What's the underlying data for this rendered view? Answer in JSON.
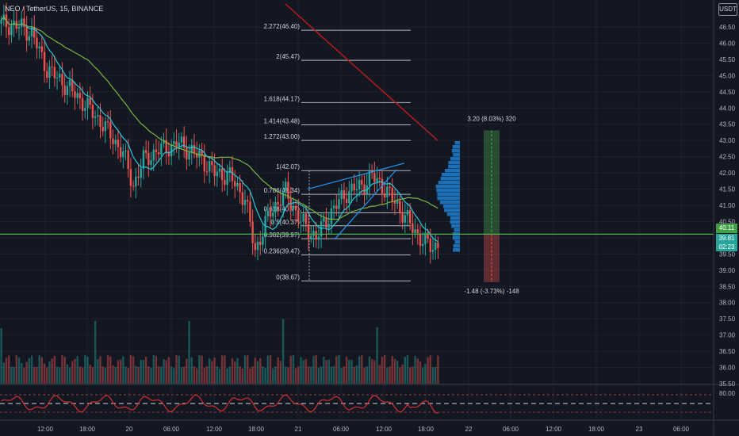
{
  "header": {
    "symbol_label": "NEO / TetherUS, 15, BINANCE",
    "currency_badge": "USDT"
  },
  "price_axis": {
    "ticks": [
      "46.50",
      "46.00",
      "45.50",
      "45.00",
      "44.50",
      "44.00",
      "43.50",
      "43.00",
      "42.50",
      "42.00",
      "41.50",
      "41.00",
      "40.50",
      "40.00",
      "39.50",
      "39.00",
      "38.50",
      "38.00",
      "37.50",
      "37.00",
      "36.50",
      "36.00",
      "35.50"
    ],
    "line_price_label": "40.11",
    "current_price_label": "39.81",
    "countdown_label": "02:23"
  },
  "time_axis": {
    "ticks": [
      "12:00",
      "18:00",
      "20",
      "06:00",
      "12:00",
      "18:00",
      "21",
      "06:00",
      "12:00",
      "18:00",
      "22",
      "06:00",
      "12:00",
      "18:00",
      "23",
      "06:00"
    ]
  },
  "fib_levels": [
    {
      "label": "2.272(46.40)"
    },
    {
      "label": "2(45.47)"
    },
    {
      "label": "1.618(44.17)"
    },
    {
      "label": "1.414(43.48)"
    },
    {
      "label": "1.272(43.00)"
    },
    {
      "label": "1(42.07)"
    },
    {
      "label": "0.786(41.34)"
    },
    {
      "label": "0.618(40.77)"
    },
    {
      "label": "0.5(40.37)"
    },
    {
      "label": "0.382(39.97)"
    },
    {
      "label": "0.236(39.47)"
    },
    {
      "label": "0(38.67)"
    }
  ],
  "position_tool": {
    "target_label": "3.20 (8.03%) 320",
    "stop_label": "-1.48 (-3.73%) -148"
  },
  "rsi_axis": {
    "top_label": "80.00"
  },
  "colors": {
    "background": "#131722",
    "up_candle": "#26a69a",
    "down_candle": "#ef5350",
    "horizontal_line": "#4caf50",
    "ma_fast": "#26c6da",
    "ma_slow": "#7cb342",
    "trendline_red": "#b71c1c",
    "trendline_blue": "#2196f3",
    "rsi_line": "#d32f2f"
  }
}
